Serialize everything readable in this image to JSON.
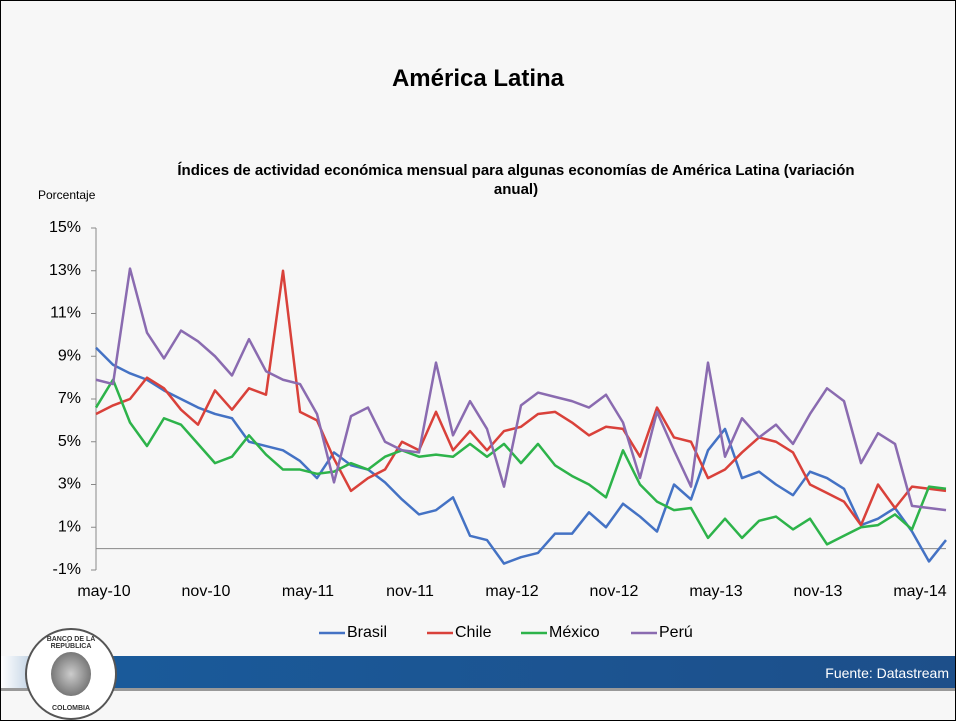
{
  "slide": {
    "title": "América Latina",
    "source": "Fuente: Datastream",
    "logo_top": "BANCO DE LA REPÚBLICA",
    "logo_bottom": "COLOMBIA"
  },
  "chart_data": {
    "type": "line",
    "title": "Índices de actividad económica mensual para algunas economías de América Latina (variación anual)",
    "y_label": "Porcentaje",
    "categories": [
      "may-10",
      null,
      null,
      null,
      null,
      null,
      "nov-10",
      null,
      null,
      null,
      null,
      null,
      "may-11",
      null,
      null,
      null,
      null,
      null,
      "nov-11",
      null,
      null,
      null,
      null,
      null,
      "may-12",
      null,
      null,
      null,
      null,
      null,
      "nov-12",
      null,
      null,
      null,
      null,
      null,
      "may-13",
      null,
      null,
      null,
      null,
      null,
      "nov-13",
      null,
      null,
      null,
      null,
      null,
      "may-14",
      null,
      null
    ],
    "ylim": [
      -1,
      15
    ],
    "yticks": [
      {
        "value": -1,
        "label": "-1%"
      },
      {
        "value": 1,
        "label": "1%"
      },
      {
        "value": 3,
        "label": "3%"
      },
      {
        "value": 5,
        "label": "5%"
      },
      {
        "value": 7,
        "label": "7%"
      },
      {
        "value": 9,
        "label": "9%"
      },
      {
        "value": 11,
        "label": "11%"
      },
      {
        "value": 13,
        "label": "13%"
      },
      {
        "value": 15,
        "label": "15%"
      }
    ],
    "legend": "bottom",
    "series": [
      {
        "name": "Brasil",
        "color": "#4472c4",
        "values": [
          9.4,
          8.6,
          8.2,
          7.9,
          7.4,
          7.0,
          6.6,
          6.3,
          6.1,
          5.0,
          4.8,
          4.6,
          4.1,
          3.3,
          4.5,
          3.9,
          3.7,
          3.1,
          2.3,
          1.6,
          1.8,
          2.4,
          0.6,
          0.4,
          -0.7,
          -0.4,
          -0.2,
          0.7,
          0.7,
          1.7,
          1.0,
          2.1,
          1.5,
          0.8,
          3.0,
          2.3,
          4.6,
          5.6,
          3.3,
          3.6,
          3.0,
          2.5,
          3.6,
          3.3,
          2.8,
          1.1,
          1.4,
          1.9,
          0.8,
          -0.6,
          0.4
        ]
      },
      {
        "name": "Chile",
        "color": "#d9413a",
        "values": [
          6.3,
          6.7,
          7.0,
          8.0,
          7.5,
          6.5,
          5.8,
          7.4,
          6.5,
          7.5,
          7.2,
          13.0,
          6.4,
          6.0,
          4.2,
          2.7,
          3.3,
          3.7,
          5.0,
          4.6,
          6.4,
          4.6,
          5.5,
          4.6,
          5.5,
          5.7,
          6.3,
          6.4,
          5.9,
          5.3,
          5.7,
          5.6,
          4.3,
          6.6,
          5.2,
          5.0,
          3.3,
          3.7,
          4.5,
          5.2,
          5.0,
          4.5,
          3.0,
          2.6,
          2.2,
          1.1,
          3.0,
          1.9,
          2.9,
          2.8,
          2.7
        ]
      },
      {
        "name": "México",
        "color": "#2db34a",
        "values": [
          6.6,
          7.9,
          5.9,
          4.8,
          6.1,
          5.8,
          4.9,
          4.0,
          4.3,
          5.3,
          4.4,
          3.7,
          3.7,
          3.5,
          3.6,
          4.0,
          3.7,
          4.3,
          4.6,
          4.3,
          4.4,
          4.3,
          4.9,
          4.3,
          4.9,
          4.0,
          4.9,
          3.9,
          3.4,
          3.0,
          2.4,
          4.6,
          3.0,
          2.2,
          1.8,
          1.9,
          0.5,
          1.4,
          0.5,
          1.3,
          1.5,
          0.9,
          1.4,
          0.2,
          0.6,
          1.0,
          1.1,
          1.6,
          0.9,
          2.9,
          2.8
        ]
      },
      {
        "name": "Perú",
        "color": "#8a6bb0",
        "values": [
          7.9,
          7.7,
          13.1,
          10.1,
          8.9,
          10.2,
          9.7,
          9.0,
          8.1,
          9.8,
          8.3,
          7.9,
          7.7,
          6.3,
          3.1,
          6.2,
          6.6,
          5.0,
          4.6,
          4.5,
          8.7,
          5.3,
          6.9,
          5.6,
          2.9,
          6.7,
          7.3,
          7.1,
          6.9,
          6.6,
          7.2,
          5.9,
          3.3,
          6.4,
          4.6,
          2.9,
          8.7,
          4.3,
          6.1,
          5.2,
          5.8,
          4.9,
          6.3,
          7.5,
          6.9,
          4.0,
          5.4,
          4.9,
          2.0,
          1.9,
          1.8
        ]
      }
    ]
  }
}
